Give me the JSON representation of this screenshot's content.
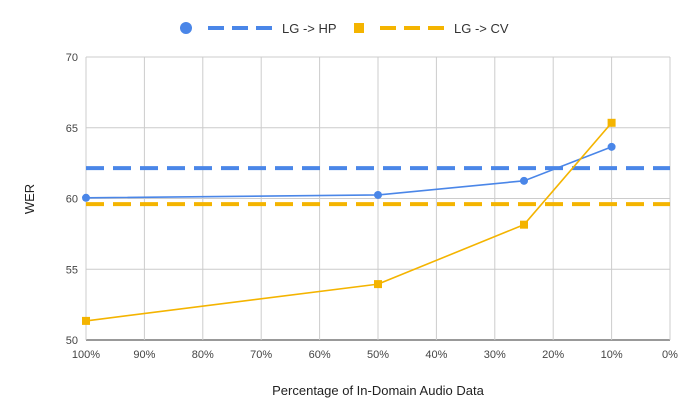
{
  "chart_data": {
    "type": "line",
    "xlabel": "Percentage of In-Domain Audio Data",
    "ylabel": "WER",
    "x_ticks": [
      100,
      90,
      80,
      70,
      60,
      50,
      40,
      30,
      20,
      10,
      0
    ],
    "x_tick_labels": [
      "100%",
      "90%",
      "80%",
      "70%",
      "60%",
      "50%",
      "40%",
      "30%",
      "20%",
      "10%",
      "0%"
    ],
    "xlim": [
      100,
      0
    ],
    "y_ticks": [
      50,
      55,
      60,
      65,
      70
    ],
    "ylim": [
      50,
      70
    ],
    "grid": true,
    "legend_position": "top",
    "series": [
      {
        "name": "",
        "color": "#4a86e8",
        "marker": "circle",
        "x": [
          100,
          50,
          25,
          10
        ],
        "y": [
          60.05,
          60.25,
          61.25,
          63.65
        ]
      },
      {
        "name": "LG -> HP",
        "color": "#4a86e8",
        "style": "dashed",
        "y_const": 62.15
      },
      {
        "name": "",
        "color": "#f4b400",
        "marker": "square",
        "x": [
          100,
          50,
          25,
          10
        ],
        "y": [
          51.35,
          53.95,
          58.15,
          65.35
        ]
      },
      {
        "name": "LG -> CV",
        "color": "#f4b400",
        "style": "dashed",
        "y_const": 59.6
      }
    ]
  }
}
